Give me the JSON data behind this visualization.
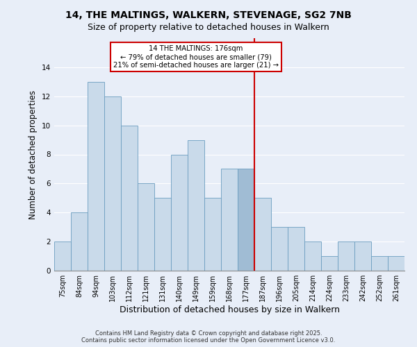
{
  "title1": "14, THE MALTINGS, WALKERN, STEVENAGE, SG2 7NB",
  "title2": "Size of property relative to detached houses in Walkern",
  "xlabel": "Distribution of detached houses by size in Walkern",
  "ylabel": "Number of detached properties",
  "footnote1": "Contains HM Land Registry data © Crown copyright and database right 2025.",
  "footnote2": "Contains public sector information licensed under the Open Government Licence v3.0.",
  "categories": [
    "75sqm",
    "84sqm",
    "94sqm",
    "103sqm",
    "112sqm",
    "121sqm",
    "131sqm",
    "140sqm",
    "149sqm",
    "159sqm",
    "168sqm",
    "177sqm",
    "187sqm",
    "196sqm",
    "205sqm",
    "214sqm",
    "224sqm",
    "233sqm",
    "242sqm",
    "252sqm",
    "261sqm"
  ],
  "values": [
    2,
    4,
    13,
    12,
    10,
    6,
    5,
    8,
    9,
    5,
    7,
    7,
    5,
    3,
    3,
    2,
    1,
    2,
    2,
    1,
    1
  ],
  "bar_color": "#c9daea",
  "bar_edge_color": "#6a9dbf",
  "highlight_bar_index": 11,
  "highlight_bar_color": "#a0bcd4",
  "vline_color": "#cc0000",
  "annotation_text": "14 THE MALTINGS: 176sqm\n← 79% of detached houses are smaller (79)\n21% of semi-detached houses are larger (21) →",
  "annotation_box_color": "#cc0000",
  "ylim": [
    0,
    16
  ],
  "yticks": [
    0,
    2,
    4,
    6,
    8,
    10,
    12,
    14
  ],
  "bg_color": "#e8eef8",
  "grid_color": "#ffffff",
  "title_fontsize": 10,
  "subtitle_fontsize": 9,
  "tick_fontsize": 7,
  "ylabel_fontsize": 8.5,
  "xlabel_fontsize": 9
}
